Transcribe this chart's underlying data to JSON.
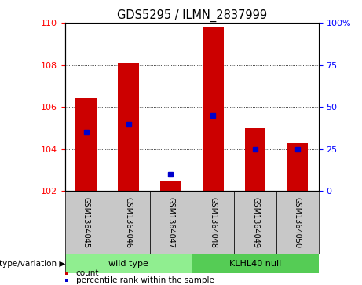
{
  "title": "GDS5295 / ILMN_2837999",
  "samples": [
    "GSM1364045",
    "GSM1364046",
    "GSM1364047",
    "GSM1364048",
    "GSM1364049",
    "GSM1364050"
  ],
  "counts": [
    106.4,
    108.1,
    102.5,
    109.8,
    105.0,
    104.3
  ],
  "percentile_ranks": [
    35,
    40,
    10,
    45,
    25,
    25
  ],
  "ymin": 102,
  "ymax": 110,
  "yticks_left": [
    102,
    104,
    106,
    108,
    110
  ],
  "yticks_right": [
    0,
    25,
    50,
    75,
    100
  ],
  "bar_color": "#cc0000",
  "dot_color": "#0000cc",
  "bar_width": 0.5,
  "plot_bg_color": "#ffffff",
  "sample_box_color": "#c8c8c8",
  "group_wt_color": "#90ee90",
  "group_kl_color": "#55cc55",
  "group_label_text": "genotype/variation",
  "legend_count_label": "count",
  "legend_pct_label": "percentile rank within the sample",
  "wt_label": "wild type",
  "kl_label": "KLHL40 null"
}
